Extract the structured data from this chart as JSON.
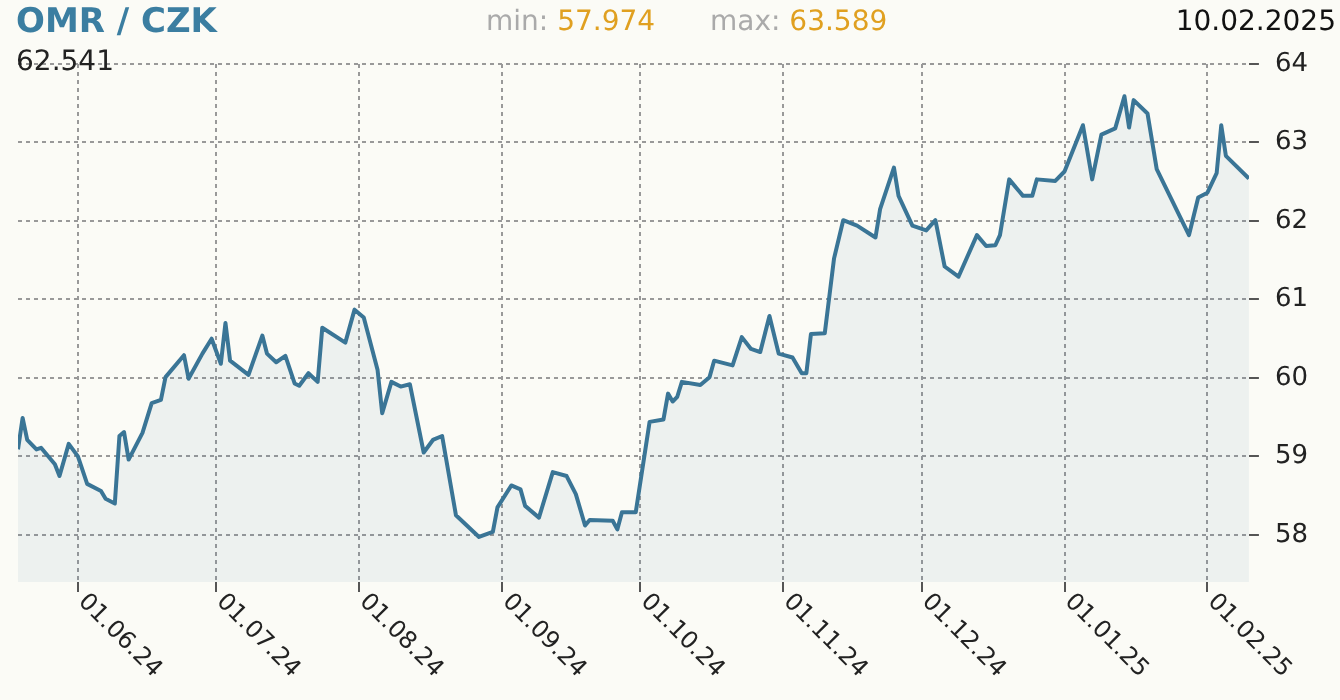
{
  "chart_data": {
    "type": "area",
    "title": "OMR / CZK",
    "annotations": [
      "62.541",
      "min: 57.974",
      "max: 63.589",
      "10.02.2025"
    ],
    "x": [
      "2024-05-19",
      "2024-05-20",
      "2024-05-21",
      "2024-05-23",
      "2024-05-24",
      "2024-05-27",
      "2024-05-28",
      "2024-05-30",
      "2024-06-01",
      "2024-06-03",
      "2024-06-06",
      "2024-06-07",
      "2024-06-09",
      "2024-06-10",
      "2024-06-11",
      "2024-06-12",
      "2024-06-15",
      "2024-06-17",
      "2024-06-19",
      "2024-06-20",
      "2024-06-24",
      "2024-06-25",
      "2024-06-28",
      "2024-06-30",
      "2024-07-02",
      "2024-07-03",
      "2024-07-04",
      "2024-07-08",
      "2024-07-11",
      "2024-07-12",
      "2024-07-14",
      "2024-07-16",
      "2024-07-18",
      "2024-07-19",
      "2024-07-21",
      "2024-07-23",
      "2024-07-24",
      "2024-07-29",
      "2024-07-31",
      "2024-08-02",
      "2024-08-05",
      "2024-08-06",
      "2024-08-08",
      "2024-08-10",
      "2024-08-12",
      "2024-08-15",
      "2024-08-17",
      "2024-08-19",
      "2024-08-22",
      "2024-08-27",
      "2024-08-30",
      "2024-08-31",
      "2024-09-03",
      "2024-09-05",
      "2024-09-06",
      "2024-09-09",
      "2024-09-12",
      "2024-09-15",
      "2024-09-17",
      "2024-09-19",
      "2024-09-20",
      "2024-09-25",
      "2024-09-26",
      "2024-09-27",
      "2024-09-30",
      "2024-10-03",
      "2024-10-06",
      "2024-10-07",
      "2024-10-08",
      "2024-10-09",
      "2024-10-10",
      "2024-10-14",
      "2024-10-16",
      "2024-10-17",
      "2024-10-21",
      "2024-10-23",
      "2024-10-25",
      "2024-10-27",
      "2024-10-29",
      "2024-10-31",
      "2024-11-03",
      "2024-11-05",
      "2024-11-06",
      "2024-11-07",
      "2024-11-10",
      "2024-11-12",
      "2024-11-14",
      "2024-11-17",
      "2024-11-21",
      "2024-11-22",
      "2024-11-25",
      "2024-11-26",
      "2024-11-29",
      "2024-12-02",
      "2024-12-04",
      "2024-12-06",
      "2024-12-09",
      "2024-12-13",
      "2024-12-15",
      "2024-12-17",
      "2024-12-18",
      "2024-12-20",
      "2024-12-23",
      "2024-12-25",
      "2024-12-26",
      "2024-12-30",
      "2025-01-01",
      "2025-01-05",
      "2025-01-07",
      "2025-01-09",
      "2025-01-12",
      "2025-01-14",
      "2025-01-15",
      "2025-01-16",
      "2025-01-19",
      "2025-01-21",
      "2025-01-28",
      "2025-01-30",
      "2025-02-01",
      "2025-02-03",
      "2025-02-04",
      "2025-02-05",
      "2025-02-10"
    ],
    "series": [
      {
        "color": "#3a7596",
        "values": [
          59.09,
          59.49,
          59.21,
          59.09,
          59.11,
          58.9,
          58.75,
          59.16,
          59.0,
          58.65,
          58.56,
          58.46,
          58.4,
          59.26,
          59.31,
          58.96,
          59.3,
          59.68,
          59.72,
          60.01,
          60.29,
          59.99,
          60.31,
          60.5,
          60.18,
          60.7,
          60.22,
          60.04,
          60.54,
          60.31,
          60.2,
          60.28,
          59.93,
          59.9,
          60.06,
          59.95,
          60.64,
          60.45,
          60.87,
          60.77,
          60.1,
          59.55,
          59.95,
          59.89,
          59.92,
          59.05,
          59.21,
          59.26,
          58.25,
          57.974,
          58.04,
          58.35,
          58.63,
          58.58,
          58.37,
          58.22,
          58.8,
          58.75,
          58.52,
          58.12,
          58.19,
          58.18,
          58.07,
          58.29,
          58.29,
          59.44,
          59.47,
          59.8,
          59.7,
          59.76,
          59.95,
          59.91,
          60.01,
          60.22,
          60.16,
          60.52,
          60.37,
          60.33,
          60.79,
          60.31,
          60.26,
          60.06,
          60.06,
          60.56,
          60.57,
          61.52,
          62.01,
          61.94,
          61.79,
          62.15,
          62.68,
          62.32,
          61.94,
          61.88,
          62.01,
          61.42,
          61.29,
          61.82,
          61.68,
          61.69,
          61.82,
          62.53,
          62.32,
          62.32,
          62.53,
          62.51,
          62.63,
          63.22,
          62.53,
          63.1,
          63.18,
          63.589,
          63.19,
          63.54,
          63.37,
          62.66,
          61.82,
          62.3,
          62.36,
          62.61,
          63.22,
          62.83,
          62.541
        ]
      }
    ],
    "xlim": [
      "2024-05-19",
      "2025-02-10"
    ],
    "xticks": [
      {
        "value": "2024-06-01",
        "label": "01.06.24"
      },
      {
        "value": "2024-07-01",
        "label": "01.07.24"
      },
      {
        "value": "2024-08-01",
        "label": "01.08.24"
      },
      {
        "value": "2024-09-01",
        "label": "01.09.24"
      },
      {
        "value": "2024-10-01",
        "label": "01.10.24"
      },
      {
        "value": "2024-11-01",
        "label": "01.11.24"
      },
      {
        "value": "2024-12-01",
        "label": "01.12.24"
      },
      {
        "value": "2025-01-01",
        "label": "01.01.25"
      },
      {
        "value": "2025-02-01",
        "label": "01.02.25"
      }
    ],
    "ylim": [
      57.4,
      64
    ],
    "yticks": [
      58,
      59,
      60,
      61,
      62,
      63,
      64
    ],
    "grid": true,
    "legend": false,
    "marker": "none",
    "line_style": "solid"
  }
}
